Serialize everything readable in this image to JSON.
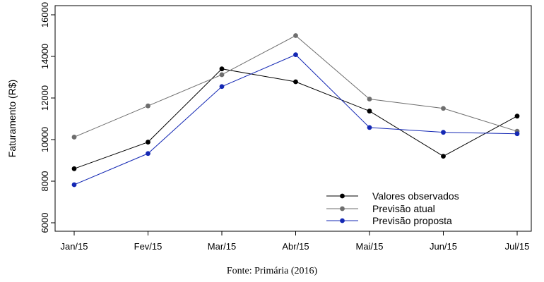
{
  "chart_data": {
    "type": "line",
    "title": "",
    "xlabel": "",
    "ylabel": "Faturamento (R$)",
    "categories": [
      "Jan/15",
      "Fev/15",
      "Mar/15",
      "Abr/15",
      "Mai/15",
      "Jun/15",
      "Jul/15"
    ],
    "yticks": [
      "6000",
      "8000",
      "10000",
      "12000",
      "14000",
      "16000"
    ],
    "ylim": [
      6000,
      16000
    ],
    "grid": false,
    "legend_position": "bottom-right",
    "series": [
      {
        "name": "Valores observados",
        "color": "#000000",
        "values": [
          8600,
          9880,
          13400,
          12780,
          11370,
          9200,
          11130
        ]
      },
      {
        "name": "Previsão atual",
        "color": "#6e6e6e",
        "values": [
          10120,
          11620,
          13120,
          15000,
          11950,
          11500,
          10400
        ]
      },
      {
        "name": "Previsão proposta",
        "color": "#1428b4",
        "values": [
          7830,
          9330,
          12550,
          14080,
          10580,
          10350,
          10280
        ]
      }
    ]
  },
  "source_note": "Fonte: Primária (2016)"
}
